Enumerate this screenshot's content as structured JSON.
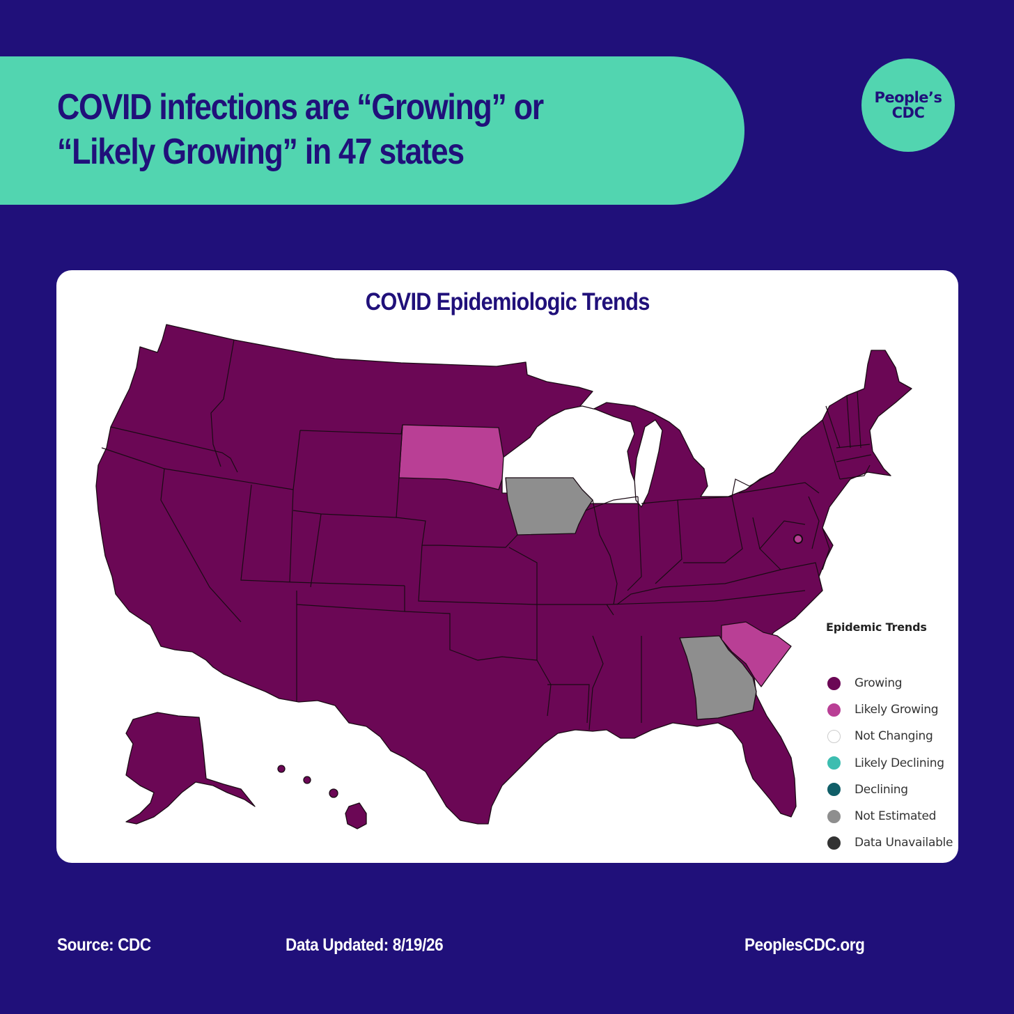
{
  "header": {
    "headline": "COVID infections are “Growing” or “Likely Growing” in 47 states",
    "logo_text": "People’s CDC"
  },
  "map": {
    "title": "COVID Epidemiologic Trends",
    "legend_title": "Epidemic Trends",
    "legend": [
      {
        "label": "Growing",
        "color": "#6b0755"
      },
      {
        "label": "Likely Growing",
        "color": "#b93f95"
      },
      {
        "label": "Not Changing",
        "color": "#ffffff"
      },
      {
        "label": "Likely Declining",
        "color": "#3dbdb0"
      },
      {
        "label": "Declining",
        "color": "#105e68"
      },
      {
        "label": "Not Estimated",
        "color": "#8e8e8e"
      },
      {
        "label": "Data Unavailable",
        "color": "#333333"
      }
    ],
    "colors": {
      "growing": "#6b0755",
      "likely_growing": "#b93f95",
      "not_changing": "#ffffff",
      "not_estimated": "#8e8e8e"
    },
    "states": [
      {
        "state": "South Dakota",
        "trend": "Likely Growing"
      },
      {
        "state": "South Carolina",
        "trend": "Likely Growing"
      },
      {
        "state": "District of Columbia",
        "trend": "Likely Growing"
      },
      {
        "state": "Wisconsin",
        "trend": "Not Changing"
      },
      {
        "state": "Iowa",
        "trend": "Not Estimated"
      },
      {
        "state": "Georgia",
        "trend": "Not Estimated"
      }
    ]
  },
  "footer": {
    "source": "Source: CDC",
    "updated": "Data Updated: 8/19/26",
    "website": "PeoplesCDC.org"
  }
}
